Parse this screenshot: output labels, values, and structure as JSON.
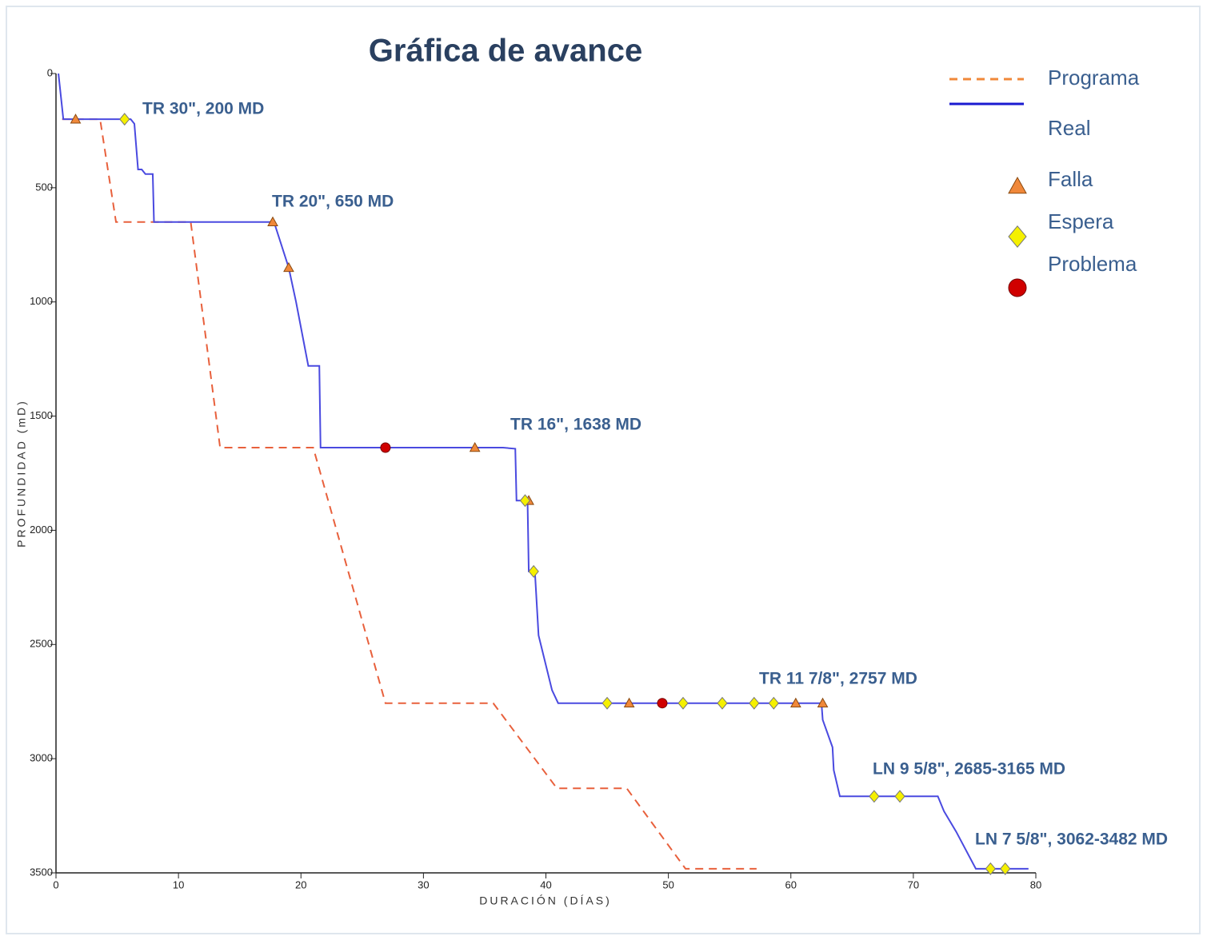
{
  "chart_data": {
    "type": "line",
    "title": "Gráfica de avance",
    "x_label": "DURACIÓN (DÍAS)",
    "y_label": "PROFUNDIDAD (mD)",
    "xlim": [
      0,
      80
    ],
    "xticks": [
      0,
      10,
      20,
      30,
      40,
      50,
      60,
      70,
      80
    ],
    "ylim": [
      0,
      3500
    ],
    "yticks": [
      0,
      500,
      1000,
      1500,
      2000,
      2500,
      3000,
      3500
    ],
    "y_inverted": true,
    "series": [
      {
        "name": "Programa",
        "color": "#e8603c",
        "style": "dashed",
        "x": [
          0.5,
          3.6,
          4.9,
          11,
          13.4,
          21,
          26.9,
          35.7,
          40.9,
          46.6,
          51.4,
          57.2
        ],
        "values": [
          200,
          200,
          650,
          650,
          1638,
          1638,
          2757,
          2757,
          3130,
          3130,
          3482,
          3482
        ]
      },
      {
        "name": "Real",
        "color": "#4a4ae0",
        "style": "solid",
        "x": [
          0.2,
          0.6,
          6.1,
          6.4,
          6.7,
          7.0,
          7.3,
          7.9,
          8.0,
          17.8,
          19.0,
          19.6,
          20.6,
          21.5,
          21.6,
          36.5,
          37.5,
          37.6,
          38.5,
          38.6,
          39.1,
          39.4,
          40.5,
          41.0,
          62.5,
          62.6,
          63.4,
          63.5,
          64.0,
          72.0,
          72.5,
          73.5,
          75.1,
          79.4
        ],
        "values": [
          0,
          200,
          200,
          220,
          420,
          420,
          440,
          440,
          650,
          650,
          850,
          1000,
          1280,
          1280,
          1638,
          1638,
          1643,
          1870,
          1870,
          2180,
          2180,
          2460,
          2700,
          2757,
          2757,
          2830,
          2950,
          3050,
          3165,
          3165,
          3230,
          3320,
          3482,
          3482
        ]
      }
    ],
    "markers": [
      {
        "name": "Falla",
        "color": "#f0883a",
        "shape": "triangle",
        "x": [
          1.6,
          17.7,
          19.0,
          34.2,
          38.6,
          46.8,
          60.4,
          62.6
        ],
        "y": [
          200,
          650,
          850,
          1638,
          1870,
          2757,
          2757,
          2757
        ]
      },
      {
        "name": "Espera",
        "color": "#f5f000",
        "shape": "diamond",
        "x": [
          5.6,
          38.3,
          39.0,
          45.0,
          51.2,
          54.4,
          57.0,
          58.6,
          66.8,
          68.9,
          76.3,
          77.5
        ],
        "y": [
          200,
          1870,
          2180,
          2757,
          2757,
          2757,
          2757,
          2757,
          3165,
          3165,
          3482,
          3482
        ]
      },
      {
        "name": "Problema",
        "color": "#d00000",
        "shape": "circle",
        "x": [
          26.9,
          49.5
        ],
        "y": [
          1638,
          2757
        ]
      }
    ],
    "annotations": [
      "TR 30\", 200 MD",
      "TR 20\", 650 MD",
      "TR 16\", 1638 MD",
      "TR 11 7/8\", 2757 MD",
      "LN 9 5/8\", 2685-3165 MD",
      "LN 7 5/8\", 3062-3482 MD"
    ]
  }
}
